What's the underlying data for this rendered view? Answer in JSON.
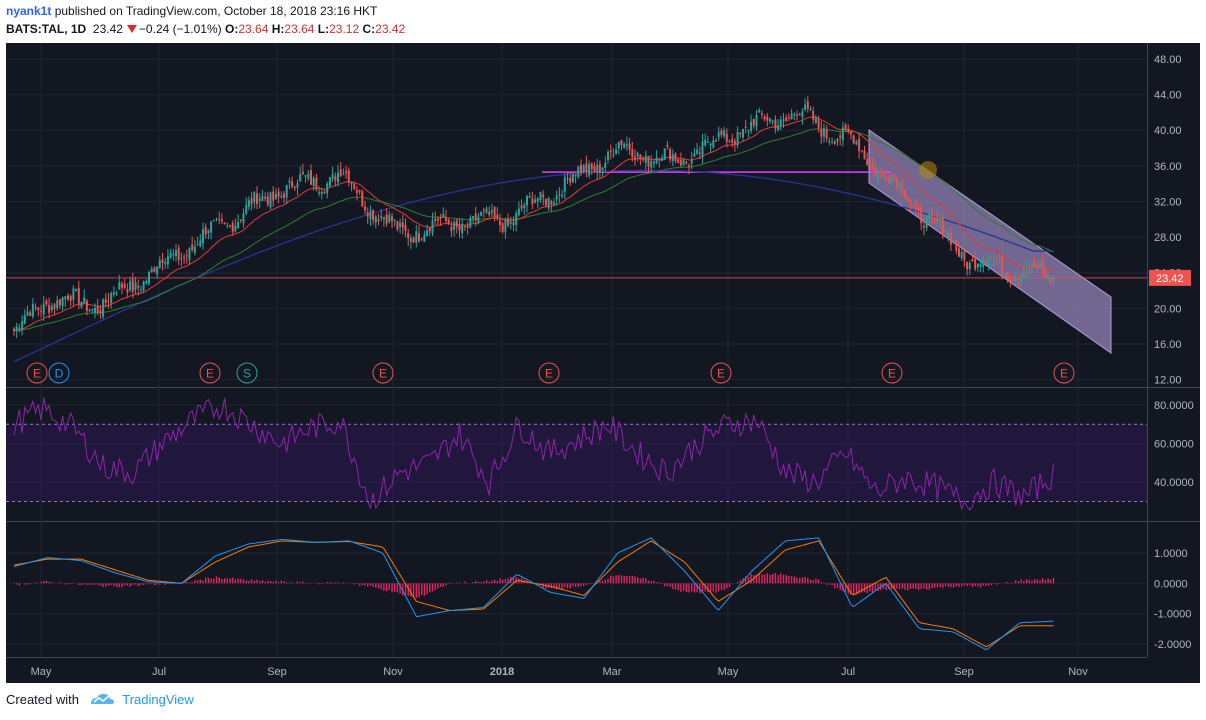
{
  "header": {
    "username": "nyank1t",
    "published_text": "published on TradingView.com, October 18, 2018 23:16 HKT",
    "symbol": "BATS:TAL, 1D",
    "last": "23.42",
    "change": "−0.24 (−1.01%)",
    "open_label": "O:",
    "open": "23.64",
    "high_label": "H:",
    "high": "23.64",
    "low_label": "L:",
    "low": "23.12",
    "close_label": "C:",
    "close": "23.42"
  },
  "footer": {
    "created_with": "Created with",
    "brand": "TradingView"
  },
  "colors": {
    "up": "#26a69a",
    "down": "#ef5350",
    "pane": "#131722",
    "grid": "#1f2433",
    "ema20": "#e53935",
    "ema50": "#2e7d32",
    "ema200": "#283593",
    "rsi": "#8e24aa",
    "macd": "#2196f3",
    "signal": "#f57c00",
    "hist": "#e91e63",
    "channel": "#b39ddb",
    "hline": "#e040fb"
  },
  "chart_data": [
    {
      "type": "candlestick",
      "title": "BATS:TAL, 1D",
      "x_ticks": [
        "May",
        "Jul",
        "Sep",
        "Nov",
        "2018",
        "Mar",
        "May",
        "Jul",
        "Sep",
        "Nov"
      ],
      "y_ticks": [
        "48.00",
        "44.00",
        "40.00",
        "36.00",
        "32.00",
        "28.00",
        "24.00",
        "20.00",
        "16.00",
        "12.00"
      ],
      "ylim": [
        12,
        48
      ],
      "last_price_label": "23.42",
      "price_path_monthly": [
        {
          "date": "2017-04",
          "close": 17.5
        },
        {
          "date": "2017-05",
          "close": 21.0
        },
        {
          "date": "2017-06",
          "close": 20.5
        },
        {
          "date": "2017-07",
          "close": 25.0
        },
        {
          "date": "2017-08",
          "close": 29.5
        },
        {
          "date": "2017-09",
          "close": 33.5
        },
        {
          "date": "2017-10",
          "close": 35.0
        },
        {
          "date": "2017-11",
          "close": 28.5
        },
        {
          "date": "2017-12",
          "close": 29.5
        },
        {
          "date": "2018-01",
          "close": 30.0
        },
        {
          "date": "2018-02",
          "close": 34.0
        },
        {
          "date": "2018-03",
          "close": 38.0
        },
        {
          "date": "2018-04",
          "close": 36.5
        },
        {
          "date": "2018-05",
          "close": 40.0
        },
        {
          "date": "2018-06",
          "close": 42.0
        },
        {
          "date": "2018-07",
          "close": 38.5
        },
        {
          "date": "2018-08",
          "close": 32.0
        },
        {
          "date": "2018-09",
          "close": 25.5
        },
        {
          "date": "2018-10",
          "close": 23.42
        }
      ],
      "overlays": [
        "EMA 20",
        "EMA 50",
        "EMA 200",
        "horizontal level 35.3",
        "descending channel"
      ],
      "event_markers": [
        "E",
        "D",
        "E",
        "S",
        "E",
        "E",
        "E",
        "E",
        "E"
      ]
    },
    {
      "type": "line",
      "series": [
        {
          "values": [
            70,
            78,
            68,
            48,
            45,
            60,
            72,
            80,
            70,
            60,
            68,
            72,
            30,
            45,
            50,
            65,
            40,
            70,
            55,
            62,
            70,
            55,
            45,
            60,
            70,
            72,
            45,
            40,
            55,
            35,
            42,
            38,
            30,
            40,
            32,
            44
          ]
        }
      ],
      "y_ticks": [
        "80.0000",
        "60.0000",
        "40.0000"
      ],
      "ylim": [
        17,
        87
      ],
      "bands": [
        30,
        70
      ]
    },
    {
      "type": "line",
      "series": [
        {
          "values": [
            0.55,
            0.85,
            0.75,
            0.35,
            0.05,
            0.0,
            0.9,
            1.3,
            1.45,
            1.35,
            1.4,
            1.0,
            -1.1,
            -0.9,
            -0.8,
            0.3,
            -0.3,
            -0.5,
            1.0,
            1.5,
            0.4,
            -0.9,
            0.4,
            1.4,
            1.5,
            -0.8,
            0.0,
            -1.5,
            -1.6,
            -2.2,
            -1.3,
            -1.25
          ]
        },
        {
          "values": [
            0.6,
            0.8,
            0.8,
            0.45,
            0.1,
            0.0,
            0.7,
            1.2,
            1.4,
            1.35,
            1.38,
            1.2,
            -0.6,
            -0.9,
            -0.85,
            0.1,
            -0.1,
            -0.4,
            0.7,
            1.4,
            0.7,
            -0.6,
            0.1,
            1.1,
            1.4,
            -0.4,
            0.2,
            -1.3,
            -1.5,
            -2.1,
            -1.4,
            -1.4
          ]
        }
      ],
      "histogram": [
        -0.05,
        0.05,
        -0.05,
        -0.1,
        -0.05,
        0.0,
        0.2,
        0.1,
        0.05,
        0.0,
        0.02,
        -0.2,
        -0.5,
        0.0,
        0.05,
        0.2,
        -0.2,
        -0.1,
        0.3,
        0.1,
        -0.3,
        -0.3,
        0.3,
        0.3,
        0.1,
        -0.4,
        -0.2,
        -0.2,
        -0.1,
        -0.1,
        0.1,
        0.15
      ],
      "y_ticks": [
        "1.0000",
        "0.0000",
        "-1.0000",
        "-2.0000"
      ],
      "ylim": [
        -2.5,
        1.7
      ]
    }
  ]
}
